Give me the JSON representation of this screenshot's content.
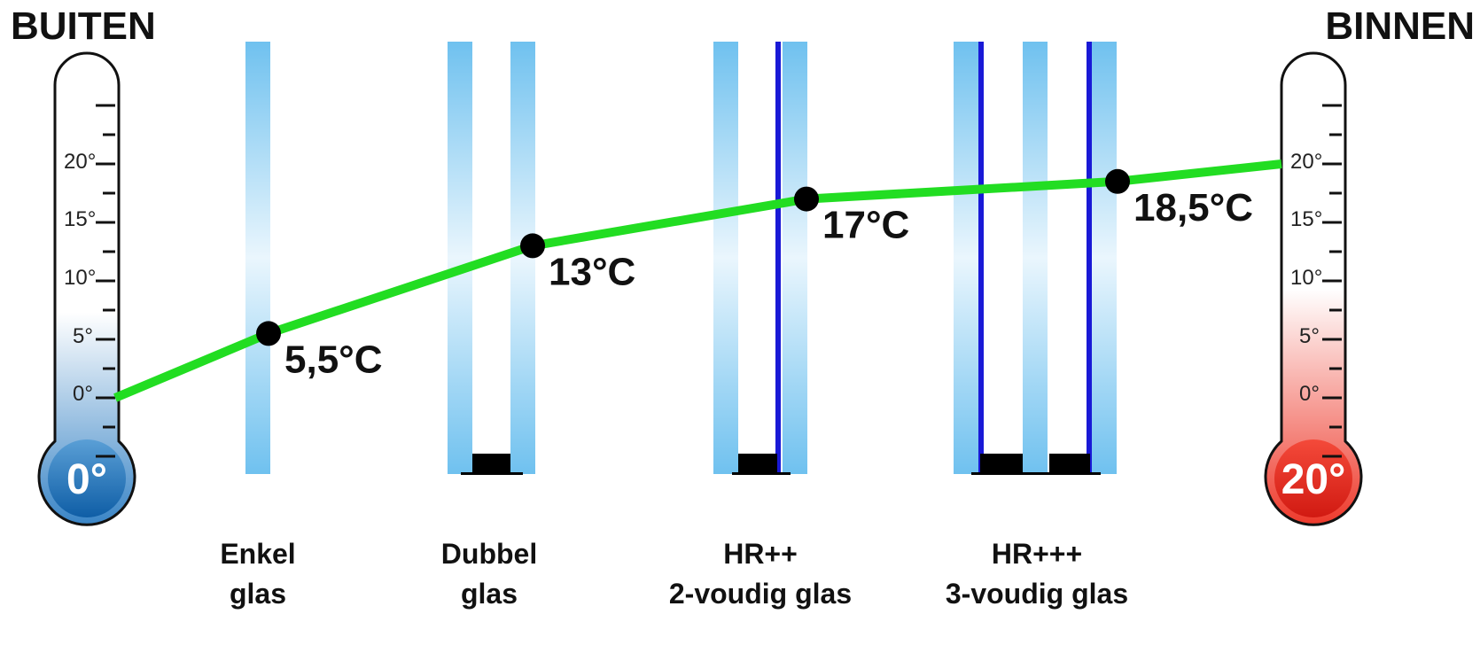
{
  "outside_label": "BUITEN",
  "inside_label": "BINNEN",
  "outside_thermometer": {
    "reading": "0°",
    "tick_labels": [
      "20°",
      "15°",
      "10°",
      "5°",
      "0°"
    ],
    "color": "#1a6fb4"
  },
  "inside_thermometer": {
    "reading": "20°",
    "tick_labels": [
      "20°",
      "15°",
      "10°",
      "5°",
      "0°"
    ],
    "color": "#e2231a"
  },
  "glass_types": [
    {
      "line1": "Enkel",
      "line2": "glas"
    },
    {
      "line1": "Dubbel",
      "line2": "glas"
    },
    {
      "line1": "HR++",
      "line2": "2-voudig glas"
    },
    {
      "line1": "HR+++",
      "line2": "3-voudig glas"
    }
  ],
  "chart_data": {
    "type": "line",
    "ylim": [
      0,
      20
    ],
    "series": [
      {
        "values": [
          0,
          5.5,
          13,
          17,
          18.5,
          20
        ],
        "labels": [
          "",
          "5,5°C",
          "13°C",
          "17°C",
          "18,5°C",
          ""
        ],
        "color": "#22dd22"
      }
    ]
  }
}
